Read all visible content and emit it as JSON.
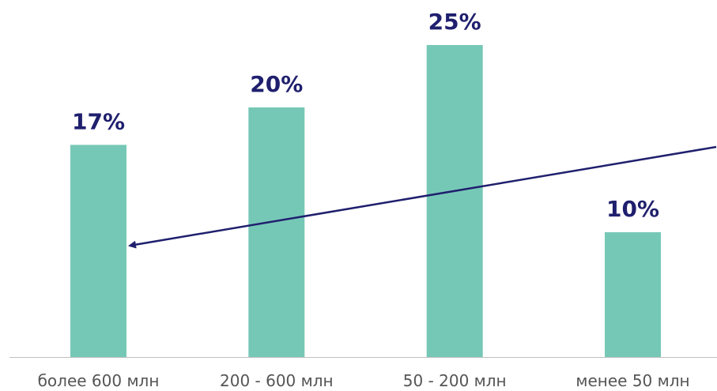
{
  "chart_data": {
    "type": "bar",
    "categories": [
      "более 600 млн",
      "200 - 600 млн",
      "50 - 200 млн",
      "менее 50 млн"
    ],
    "values": [
      17,
      20,
      25,
      10
    ],
    "value_labels": [
      "17%",
      "20%",
      "25%",
      "10%"
    ],
    "ylim": [
      0,
      25
    ],
    "grid": false,
    "legend": "none",
    "annotations": [
      {
        "type": "arrow",
        "direction": "from right edge pointing left toward first bar"
      }
    ],
    "colors": {
      "bar": "#76c8b6",
      "value_label": "#1f1f6e",
      "arrow": "#1f1f6e",
      "axis": "#bfbfbf",
      "category_label": "#555555"
    }
  }
}
